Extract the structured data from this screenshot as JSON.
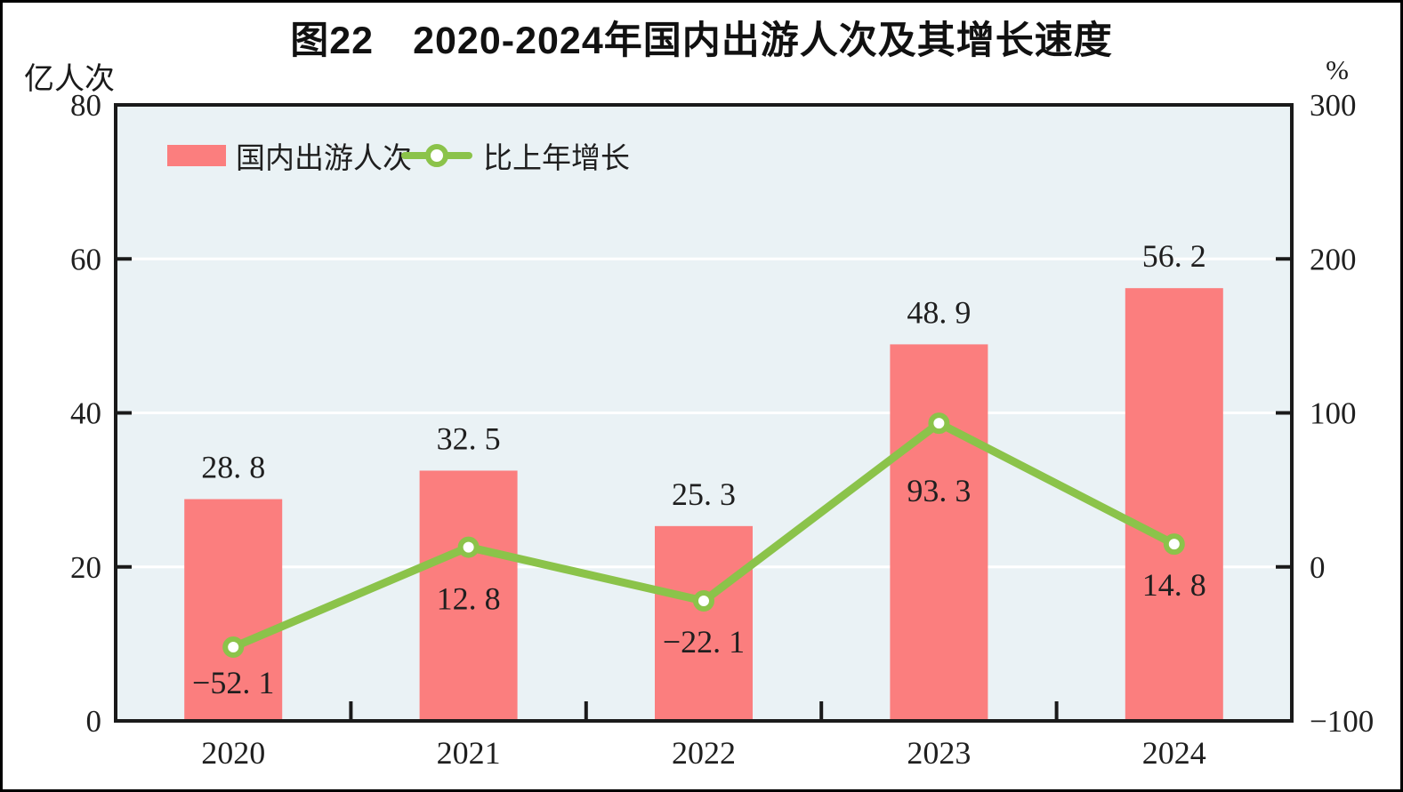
{
  "title": "图22　2020-2024年国内出游人次及其增长速度",
  "chart_data": {
    "type": "bar",
    "categories": [
      "2020",
      "2021",
      "2022",
      "2023",
      "2024"
    ],
    "series": [
      {
        "name": "国内出游人次",
        "type": "bar",
        "axis": "left",
        "color": "#fb7e7e",
        "values": [
          28.8,
          32.5,
          25.3,
          48.9,
          56.2
        ],
        "labels": [
          "28. 8",
          "32. 5",
          "25. 3",
          "48. 9",
          "56. 2"
        ]
      },
      {
        "name": "比上年增长",
        "type": "line",
        "axis": "right",
        "color": "#8bc34a",
        "marker": "circle-open",
        "values": [
          -52.1,
          12.8,
          -22.1,
          93.3,
          14.8
        ],
        "labels": [
          "−52. 1",
          "12. 8",
          "−22. 1",
          "93. 3",
          "14. 8"
        ]
      }
    ],
    "axes": {
      "left": {
        "label": "亿人次",
        "range": [
          0,
          80
        ],
        "ticks": [
          0,
          20,
          40,
          60,
          80
        ],
        "tick_labels": [
          "0",
          "20",
          "40",
          "60",
          "80"
        ]
      },
      "right": {
        "label": "%",
        "range": [
          -100,
          300
        ],
        "ticks": [
          -100,
          0,
          100,
          200,
          300
        ],
        "tick_labels": [
          "−100",
          "0",
          "100",
          "200",
          "300"
        ]
      }
    },
    "grid": {
      "show": true,
      "lines_at_left_values": [
        20,
        40,
        60
      ],
      "color": "#ffffff"
    },
    "legend": {
      "position": "top-left-inside",
      "entries": [
        {
          "label": "国内出游人次",
          "swatch": "bar",
          "color": "#fb7e7e"
        },
        {
          "label": "比上年增长",
          "swatch": "line-marker",
          "color": "#8bc34a"
        }
      ]
    },
    "plot_background": "#eaf2f5",
    "axis_color": "#1a1a1a",
    "text_color": "#1f1f1f"
  }
}
